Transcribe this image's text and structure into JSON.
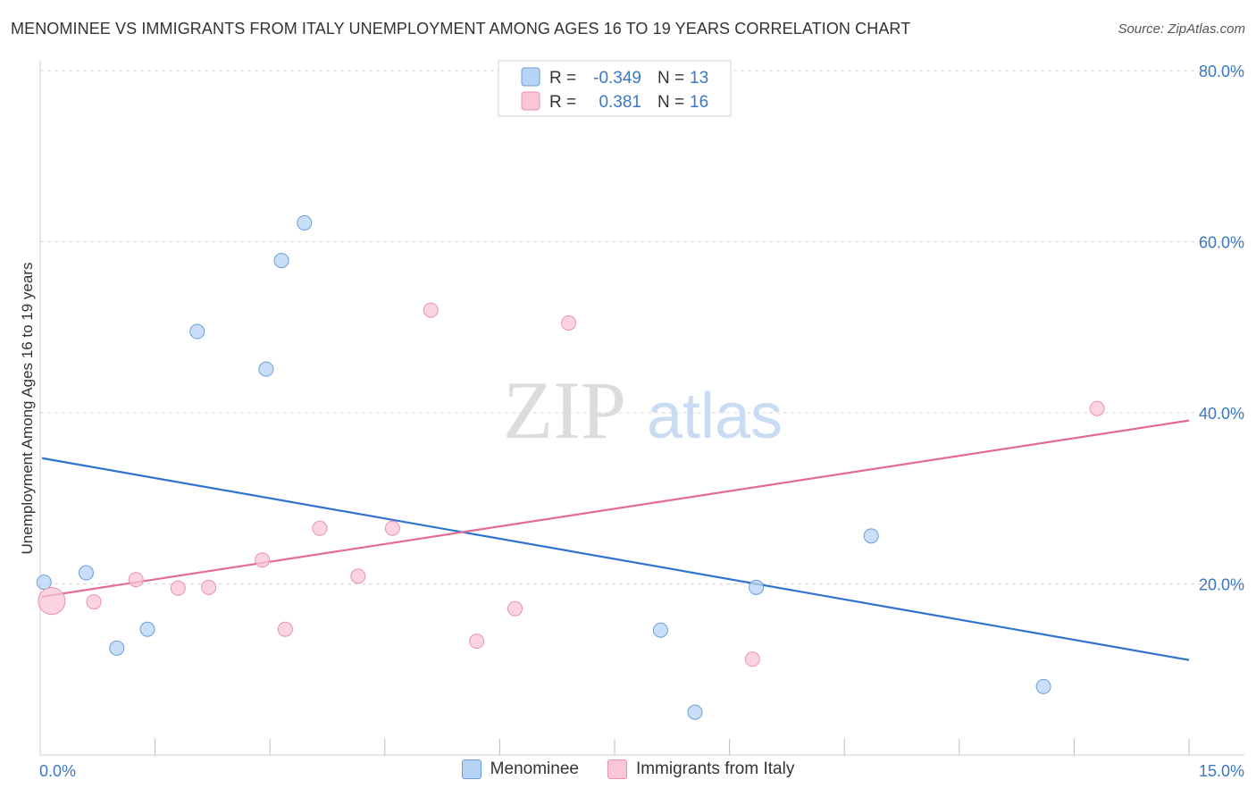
{
  "header": {
    "title": "MENOMINEE VS IMMIGRANTS FROM ITALY UNEMPLOYMENT AMONG AGES 16 TO 19 YEARS CORRELATION CHART",
    "source": "Source: ZipAtlas.com"
  },
  "watermark": {
    "zip": "ZIP",
    "atlas": "atlas"
  },
  "colors": {
    "series1_fill": "#b7d3f5",
    "series1_stroke": "#6a9ed6",
    "series1_line": "#2f73d0",
    "series2_fill": "#f9c6d6",
    "series2_stroke": "#e992ae",
    "series2_line": "#e36b96",
    "axis_text": "#3b78c4"
  },
  "chart_data": {
    "type": "scatter",
    "title": "MENOMINEE VS IMMIGRANTS FROM ITALY UNEMPLOYMENT AMONG AGES 16 TO 19 YEARS CORRELATION CHART",
    "xlabel": "",
    "ylabel": "Unemployment Among Ages 16 to 19 years",
    "xlim": [
      0,
      15
    ],
    "ylim": [
      0,
      80
    ],
    "x_tick_labels": [
      "0.0%",
      "15.0%"
    ],
    "y_ticks": [
      20,
      40,
      60,
      80
    ],
    "y_tick_labels": [
      "20.0%",
      "40.0%",
      "60.0%",
      "80.0%"
    ],
    "grid": true,
    "legend": [
      {
        "name": "Menominee",
        "r_label": "R =",
        "r_value": "-0.349",
        "n_label": "N =",
        "n_value": "13"
      },
      {
        "name": "Immigrants from Italy",
        "r_label": "R =",
        "r_value": "0.381",
        "n_label": "N =",
        "n_value": "16"
      }
    ],
    "series": [
      {
        "name": "Menominee",
        "points": [
          {
            "x": 0.05,
            "y": 20.2
          },
          {
            "x": 0.6,
            "y": 21.3
          },
          {
            "x": 1.0,
            "y": 12.5
          },
          {
            "x": 1.4,
            "y": 14.7
          },
          {
            "x": 2.05,
            "y": 49.5
          },
          {
            "x": 2.95,
            "y": 45.1
          },
          {
            "x": 3.15,
            "y": 57.8
          },
          {
            "x": 3.45,
            "y": 62.2
          },
          {
            "x": 8.1,
            "y": 14.6
          },
          {
            "x": 8.55,
            "y": 5.0
          },
          {
            "x": 9.35,
            "y": 19.6
          },
          {
            "x": 10.85,
            "y": 25.6
          },
          {
            "x": 13.1,
            "y": 8.0
          }
        ],
        "trend": {
          "x": [
            0,
            15
          ],
          "y": [
            34.7,
            11.1
          ]
        }
      },
      {
        "name": "Immigrants from Italy",
        "points": [
          {
            "x": 0.15,
            "y": 18.0,
            "size": "large"
          },
          {
            "x": 0.7,
            "y": 17.9
          },
          {
            "x": 1.25,
            "y": 20.5
          },
          {
            "x": 1.8,
            "y": 19.5
          },
          {
            "x": 2.2,
            "y": 19.6
          },
          {
            "x": 2.9,
            "y": 22.8
          },
          {
            "x": 3.2,
            "y": 14.7
          },
          {
            "x": 3.65,
            "y": 26.5
          },
          {
            "x": 4.15,
            "y": 20.9
          },
          {
            "x": 4.6,
            "y": 26.5
          },
          {
            "x": 5.1,
            "y": 52.0
          },
          {
            "x": 5.7,
            "y": 13.3
          },
          {
            "x": 6.2,
            "y": 17.1
          },
          {
            "x": 6.9,
            "y": 50.5
          },
          {
            "x": 9.3,
            "y": 11.2
          },
          {
            "x": 13.8,
            "y": 40.5
          }
        ],
        "trend": {
          "x": [
            0,
            15
          ],
          "y": [
            18.5,
            39.1
          ]
        }
      }
    ]
  }
}
